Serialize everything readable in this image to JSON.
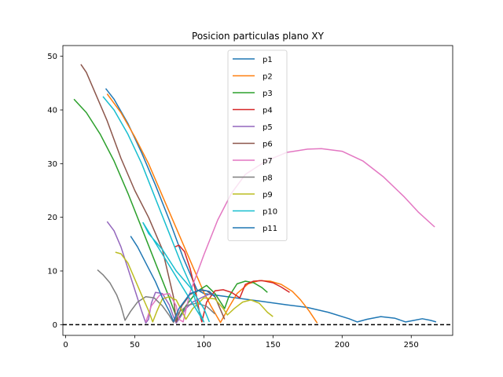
{
  "chart_data": {
    "type": "line",
    "title": "Posicion particulas plano XY",
    "xlabel": "",
    "ylabel": "",
    "xlim": [
      -2,
      280
    ],
    "ylim": [
      -2,
      52
    ],
    "xticks": [
      0,
      50,
      100,
      150,
      200,
      250
    ],
    "yticks": [
      0,
      10,
      20,
      30,
      40,
      50
    ],
    "grid": false,
    "legend_position": "top-center",
    "reference_line": {
      "y": 0,
      "style": "dashed",
      "color": "#000000"
    },
    "series": [
      {
        "name": "p1",
        "color": "#1f77b4",
        "points": [
          [
            29,
            44
          ],
          [
            35,
            42
          ],
          [
            45,
            37.5
          ],
          [
            55,
            32
          ],
          [
            65,
            26
          ],
          [
            75,
            19.5
          ],
          [
            85,
            12.5
          ],
          [
            95,
            6.5
          ],
          [
            100,
            5.8
          ],
          [
            120,
            5.1
          ],
          [
            140,
            4.4
          ],
          [
            160,
            3.7
          ],
          [
            175,
            3.2
          ],
          [
            190,
            2.3
          ],
          [
            205,
            1.1
          ],
          [
            211,
            0.5
          ],
          [
            218,
            1.0
          ],
          [
            228,
            1.5
          ],
          [
            238,
            1.2
          ],
          [
            246,
            0.5
          ],
          [
            252,
            0.8
          ],
          [
            258,
            1.1
          ],
          [
            264,
            0.8
          ],
          [
            268,
            0.5
          ]
        ]
      },
      {
        "name": "p2",
        "color": "#ff7f0e",
        "points": [
          [
            30,
            43
          ],
          [
            40,
            39.5
          ],
          [
            50,
            35
          ],
          [
            60,
            30
          ],
          [
            70,
            24
          ],
          [
            80,
            18
          ],
          [
            90,
            12
          ],
          [
            100,
            6
          ],
          [
            105,
            3.5
          ],
          [
            112,
            0.4
          ],
          [
            118,
            3.2
          ],
          [
            124,
            5.8
          ],
          [
            132,
            7.6
          ],
          [
            140,
            8.2
          ],
          [
            148,
            8.1
          ],
          [
            156,
            7.5
          ],
          [
            164,
            6.2
          ],
          [
            170,
            4.6
          ],
          [
            176,
            2.6
          ],
          [
            182,
            0.3
          ]
        ]
      },
      {
        "name": "p3",
        "color": "#2ca02c",
        "points": [
          [
            6,
            42
          ],
          [
            15,
            39.5
          ],
          [
            25,
            35.5
          ],
          [
            35,
            30.5
          ],
          [
            45,
            24.5
          ],
          [
            55,
            18
          ],
          [
            65,
            11.5
          ],
          [
            75,
            5
          ],
          [
            81,
            0.8
          ],
          [
            87,
            3.5
          ],
          [
            95,
            6.2
          ],
          [
            102,
            7.3
          ],
          [
            108,
            5.8
          ],
          [
            115,
            3
          ],
          [
            118,
            5.2
          ],
          [
            124,
            7.6
          ],
          [
            130,
            8.1
          ],
          [
            136,
            7.8
          ],
          [
            142,
            6.9
          ],
          [
            146,
            6
          ]
        ]
      },
      {
        "name": "p4",
        "color": "#d62728",
        "points": [
          [
            79,
            14.5
          ],
          [
            82,
            14.8
          ],
          [
            86,
            13.6
          ],
          [
            90,
            10.5
          ],
          [
            94,
            6.2
          ],
          [
            97,
            2
          ],
          [
            98.5,
            0.5
          ],
          [
            102,
            4.2
          ],
          [
            108,
            6.3
          ],
          [
            114,
            6.5
          ],
          [
            120,
            6
          ],
          [
            126,
            5
          ],
          [
            130,
            7.5
          ],
          [
            136,
            8.1
          ],
          [
            142,
            8.2
          ],
          [
            150,
            7.8
          ],
          [
            156,
            7
          ],
          [
            162,
            6
          ]
        ]
      },
      {
        "name": "p5",
        "color": "#9467bd",
        "points": [
          [
            30,
            19.2
          ],
          [
            35,
            17.5
          ],
          [
            40,
            14.5
          ],
          [
            45,
            10.5
          ],
          [
            50,
            6.5
          ],
          [
            55,
            2.5
          ],
          [
            58,
            0.3
          ],
          [
            60,
            1
          ],
          [
            62,
            4
          ],
          [
            65,
            6
          ],
          [
            70,
            5.8
          ],
          [
            75,
            3.7
          ],
          [
            78,
            1.5
          ],
          [
            80,
            0.3
          ],
          [
            82,
            1
          ],
          [
            87,
            3
          ],
          [
            92,
            4.2
          ],
          [
            98,
            5
          ],
          [
            105,
            5.8
          ]
        ]
      },
      {
        "name": "p6",
        "color": "#8c564b",
        "points": [
          [
            11,
            48.5
          ],
          [
            15,
            47
          ],
          [
            20,
            44
          ],
          [
            30,
            38
          ],
          [
            40,
            31
          ],
          [
            50,
            25
          ],
          [
            60,
            20
          ],
          [
            70,
            14
          ],
          [
            78,
            5.2
          ],
          [
            80,
            0.5
          ],
          [
            84,
            3.5
          ],
          [
            90,
            5.6
          ],
          [
            96,
            6.4
          ],
          [
            102,
            6.3
          ],
          [
            108,
            5.2
          ],
          [
            112,
            2.8
          ],
          [
            115,
            1
          ]
        ]
      },
      {
        "name": "p7",
        "color": "#e377c2",
        "points": [
          [
            58,
            0.5
          ],
          [
            62,
            3.5
          ],
          [
            68,
            5.5
          ],
          [
            75,
            5.8
          ],
          [
            80,
            3.5
          ],
          [
            82,
            1
          ],
          [
            85,
            0.5
          ],
          [
            90,
            6
          ],
          [
            100,
            13
          ],
          [
            110,
            19.5
          ],
          [
            120,
            24.5
          ],
          [
            130,
            28
          ],
          [
            145,
            30.5
          ],
          [
            160,
            32.1
          ],
          [
            175,
            32.7
          ],
          [
            185,
            32.8
          ],
          [
            200,
            32.3
          ],
          [
            215,
            30.5
          ],
          [
            230,
            27.5
          ],
          [
            245,
            23.8
          ],
          [
            255,
            21
          ],
          [
            267,
            18.2
          ]
        ]
      },
      {
        "name": "p8",
        "color": "#7f7f7f",
        "points": [
          [
            23,
            10.2
          ],
          [
            27,
            9.3
          ],
          [
            32,
            7.8
          ],
          [
            37,
            5.5
          ],
          [
            40,
            3.5
          ],
          [
            43,
            0.8
          ],
          [
            47,
            2.5
          ],
          [
            52,
            4.2
          ],
          [
            58,
            5.2
          ],
          [
            64,
            5
          ],
          [
            70,
            3.5
          ],
          [
            75,
            1.7
          ],
          [
            78,
            0.4
          ],
          [
            82,
            2.3
          ],
          [
            88,
            3.6
          ],
          [
            95,
            4
          ],
          [
            102,
            3.4
          ],
          [
            108,
            2
          ]
        ]
      },
      {
        "name": "p9",
        "color": "#bcbd22",
        "points": [
          [
            36,
            13.5
          ],
          [
            40,
            13.2
          ],
          [
            45,
            11.5
          ],
          [
            50,
            8.5
          ],
          [
            55,
            5.5
          ],
          [
            60,
            2.6
          ],
          [
            63,
            0.5
          ],
          [
            66,
            2.5
          ],
          [
            70,
            4.8
          ],
          [
            75,
            5.2
          ],
          [
            80,
            4.6
          ],
          [
            84,
            2.6
          ],
          [
            87,
            1
          ],
          [
            92,
            3
          ],
          [
            100,
            5
          ],
          [
            108,
            4.8
          ],
          [
            114,
            3
          ],
          [
            117,
            1.8
          ],
          [
            122,
            3
          ],
          [
            128,
            4.2
          ],
          [
            134,
            4.6
          ],
          [
            140,
            4
          ],
          [
            146,
            2.3
          ],
          [
            150,
            1.5
          ]
        ]
      },
      {
        "name": "p10",
        "color": "#17becf",
        "points": [
          [
            27,
            42.5
          ],
          [
            35,
            40
          ],
          [
            45,
            35.5
          ],
          [
            55,
            30
          ],
          [
            65,
            23.5
          ],
          [
            75,
            17
          ],
          [
            85,
            10.5
          ],
          [
            91,
            7
          ],
          [
            95,
            3.5
          ],
          [
            100,
            0.5
          ],
          [
            56,
            19
          ],
          [
            60,
            17
          ],
          [
            70,
            14
          ],
          [
            80,
            10
          ],
          [
            90,
            7
          ],
          [
            100,
            3
          ],
          [
            104,
            0.5
          ]
        ]
      },
      {
        "name": "p11",
        "color": "#1f77b4",
        "points": [
          [
            47,
            16.5
          ],
          [
            52,
            14.5
          ],
          [
            58,
            11.5
          ],
          [
            65,
            8
          ],
          [
            70,
            5
          ],
          [
            75,
            2.5
          ],
          [
            78,
            0.6
          ],
          [
            82,
            3
          ],
          [
            90,
            5.8
          ],
          [
            98,
            6.5
          ],
          [
            104,
            6.2
          ],
          [
            108,
            5.2
          ]
        ]
      }
    ]
  }
}
